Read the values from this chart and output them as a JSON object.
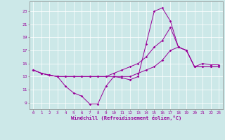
{
  "xlabel": "Windchill (Refroidissement éolien,°C)",
  "bg_color": "#cce8e8",
  "line_color": "#990099",
  "grid_color": "#ffffff",
  "xmin": -0.5,
  "xmax": 23.5,
  "ymin": 8.0,
  "ymax": 24.5,
  "yticks": [
    9,
    11,
    13,
    15,
    17,
    19,
    21,
    23
  ],
  "xticks": [
    0,
    1,
    2,
    3,
    4,
    5,
    6,
    7,
    8,
    9,
    10,
    11,
    12,
    13,
    14,
    15,
    16,
    17,
    18,
    19,
    20,
    21,
    22,
    23
  ],
  "line1_x": [
    0,
    1,
    2,
    3,
    4,
    5,
    6,
    7,
    8,
    9,
    10,
    11,
    12,
    13,
    14,
    15,
    16,
    17,
    18,
    19,
    20,
    21,
    22,
    23
  ],
  "line1_y": [
    14.0,
    13.5,
    13.2,
    13.0,
    11.5,
    10.5,
    10.0,
    8.8,
    8.8,
    11.5,
    13.0,
    12.8,
    12.5,
    13.0,
    18.0,
    23.0,
    23.5,
    21.5,
    17.5,
    17.0,
    14.5,
    14.5,
    14.5,
    14.5
  ],
  "line2_x": [
    0,
    1,
    2,
    3,
    4,
    5,
    6,
    7,
    8,
    9,
    10,
    11,
    12,
    13,
    14,
    15,
    16,
    17,
    18,
    19,
    20,
    21,
    22,
    23
  ],
  "line2_y": [
    14.0,
    13.5,
    13.2,
    13.0,
    13.0,
    13.0,
    13.0,
    13.0,
    13.0,
    13.0,
    13.5,
    14.0,
    14.5,
    15.0,
    16.0,
    17.5,
    18.5,
    20.5,
    17.5,
    17.0,
    14.5,
    15.0,
    14.8,
    14.8
  ],
  "line3_x": [
    0,
    1,
    2,
    3,
    4,
    5,
    6,
    7,
    8,
    9,
    10,
    11,
    12,
    13,
    14,
    15,
    16,
    17,
    18,
    19,
    20,
    21,
    22,
    23
  ],
  "line3_y": [
    14.0,
    13.5,
    13.2,
    13.0,
    13.0,
    13.0,
    13.0,
    13.0,
    13.0,
    13.0,
    13.0,
    13.0,
    13.0,
    13.5,
    14.0,
    14.5,
    15.5,
    17.0,
    17.5,
    17.0,
    14.5,
    14.5,
    14.5,
    14.5
  ]
}
